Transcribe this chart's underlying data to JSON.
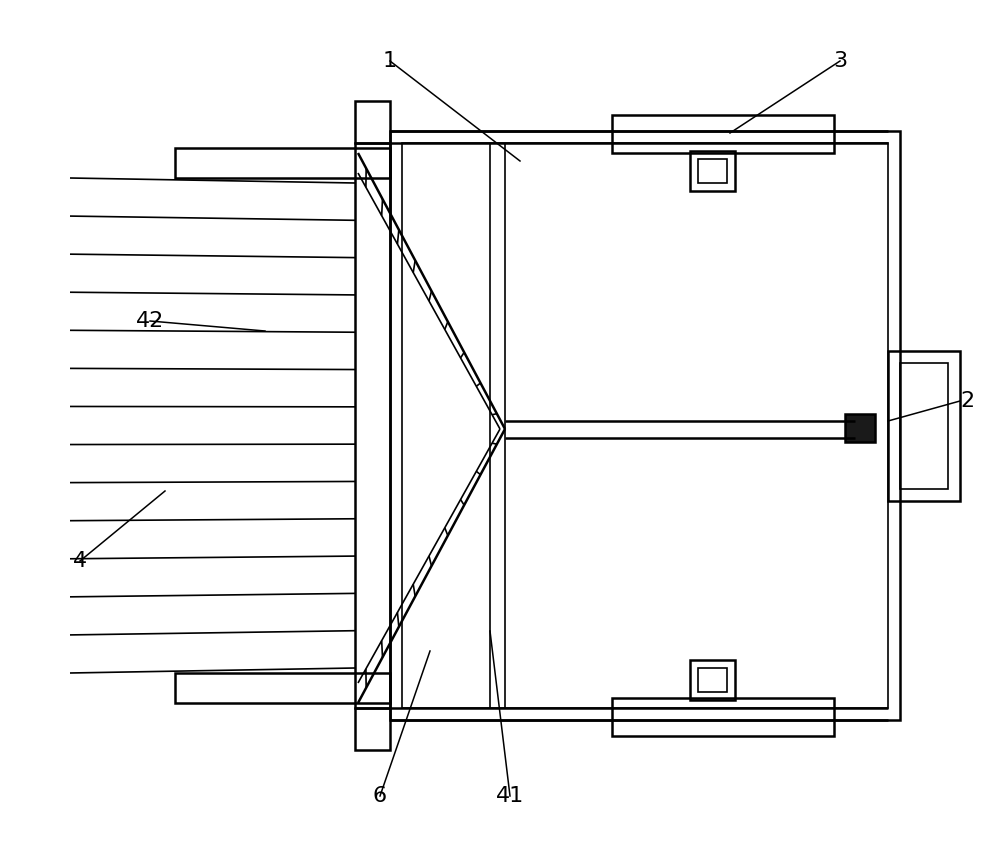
{
  "bg_color": "#ffffff",
  "line_color": "#000000",
  "lw_thick": 1.8,
  "lw_thin": 1.2,
  "fig_width": 10.0,
  "fig_height": 8.51
}
